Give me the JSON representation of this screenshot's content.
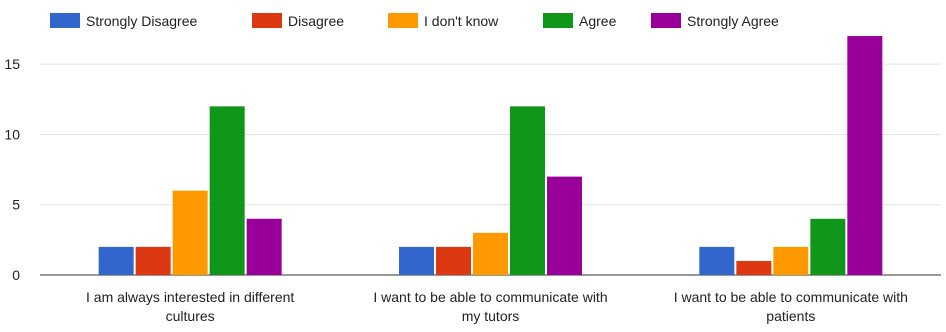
{
  "chart_data": {
    "type": "bar",
    "categories": [
      [
        "I am always interested in different",
        "cultures"
      ],
      [
        "I want to be able to communicate with",
        "my tutors"
      ],
      [
        "I want to be able to communicate with",
        "patients"
      ]
    ],
    "series": [
      {
        "name": "Strongly Disagree",
        "color": "#3366cc",
        "values": [
          2,
          2,
          2
        ]
      },
      {
        "name": "Disagree",
        "color": "#dc3912",
        "values": [
          2,
          2,
          1
        ]
      },
      {
        "name": "I don't know",
        "color": "#ff9900",
        "values": [
          6,
          3,
          2
        ]
      },
      {
        "name": "Agree",
        "color": "#109618",
        "values": [
          12,
          12,
          4
        ]
      },
      {
        "name": "Strongly Agree",
        "color": "#990099",
        "values": [
          4,
          7,
          17
        ]
      }
    ],
    "yticks": [
      "0",
      "5",
      "10",
      "15"
    ],
    "ylim": [
      0,
      18
    ],
    "grid": true,
    "legend_position": "top",
    "title": "",
    "xlabel": "",
    "ylabel": ""
  }
}
